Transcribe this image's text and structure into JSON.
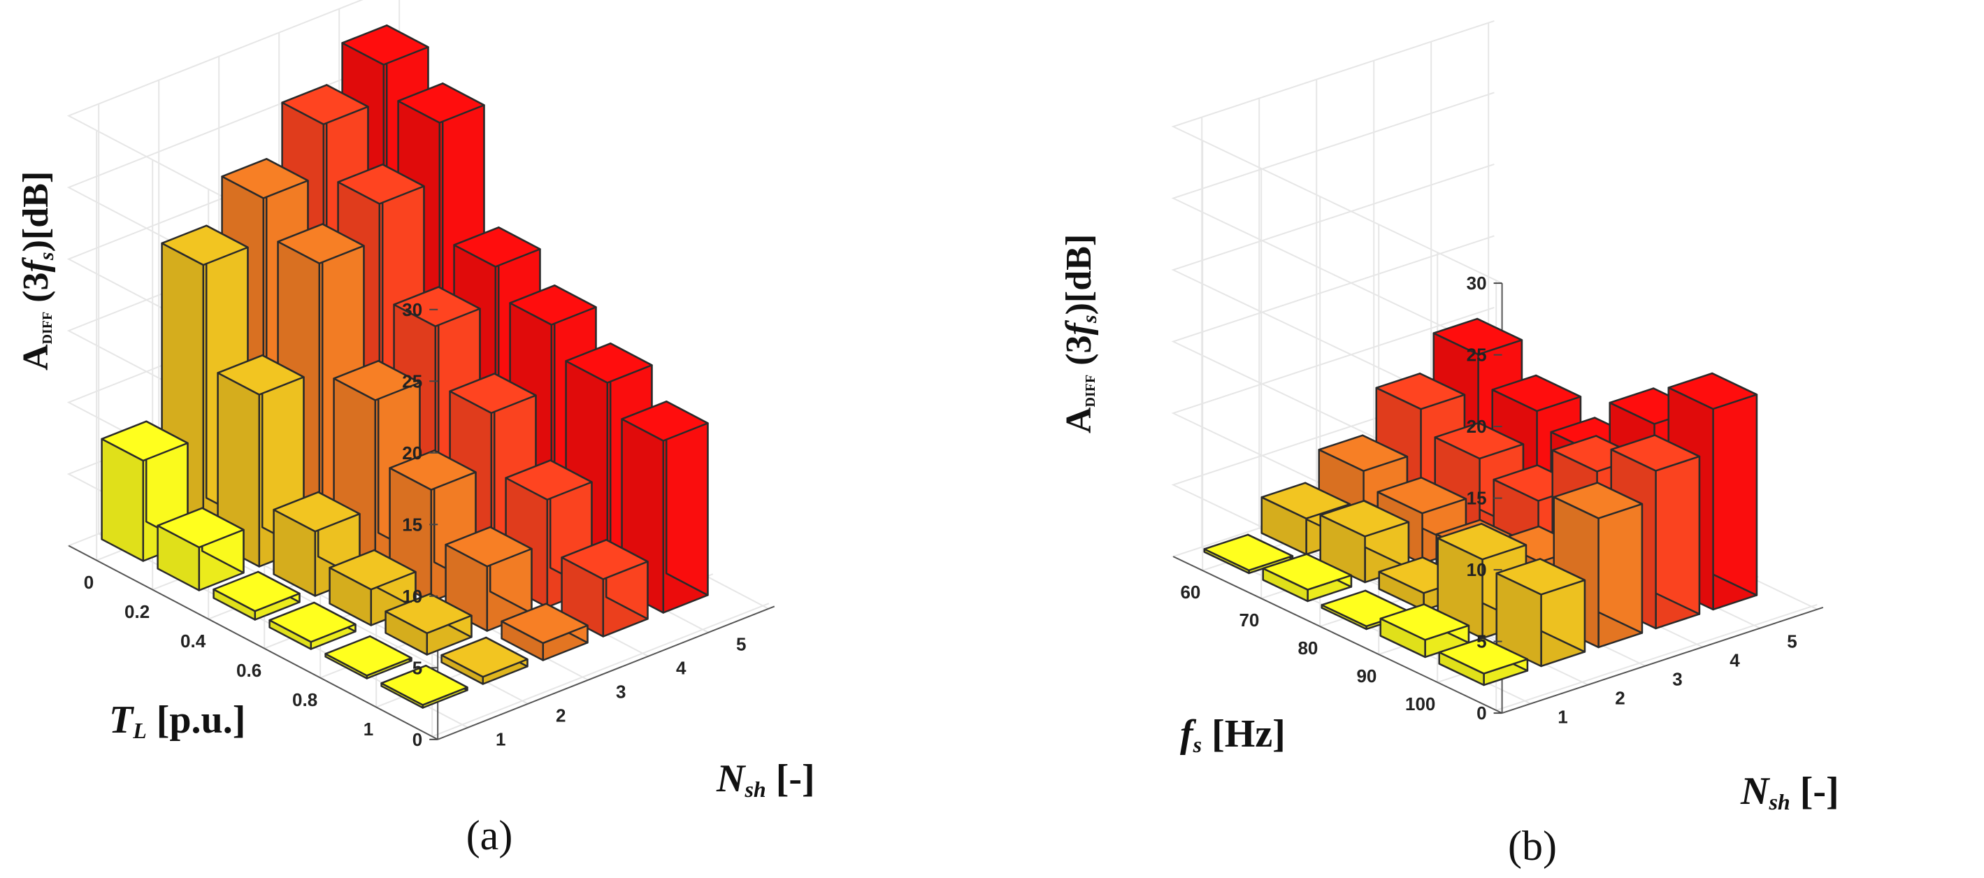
{
  "chart_data": [
    {
      "type": "bar3d",
      "panel_label": "(a)",
      "zlabel_parts": {
        "A": "A",
        "sub": "DIFF",
        "mid": " (3",
        "f": "f",
        "s": "s",
        "end": ")[dB]"
      },
      "depth_label": {
        "main": "T",
        "sub": "L",
        "rest": " [p.u.]"
      },
      "width_label": {
        "main": "N",
        "sub": "sh",
        "rest": " [-]"
      },
      "depth_ticks": [
        "0",
        "0.2",
        "0.4",
        "0.6",
        "0.8",
        "1"
      ],
      "width_ticks": [
        "1",
        "2",
        "3",
        "4",
        "5"
      ],
      "zlim": [
        0,
        30
      ],
      "zticks": [
        "0",
        "5",
        "10",
        "15",
        "20",
        "25",
        "30"
      ],
      "values": [
        [
          7,
          3,
          0.6,
          0.5,
          0.2,
          0.2
        ],
        [
          19,
          12,
          4.5,
          2.5,
          1.5,
          0.5
        ],
        [
          22,
          19.5,
          12,
          7.8,
          4.5,
          1.2
        ],
        [
          25.5,
          22,
          15.5,
          11.5,
          7.5,
          4
        ],
        [
          28,
          26,
          18,
          16,
          14,
          12
        ]
      ]
    },
    {
      "type": "bar3d",
      "panel_label": "(b)",
      "zlabel_parts": {
        "A": "A",
        "sub": "DIFF",
        "mid": " (3",
        "f": "f",
        "s": "s",
        "end": ")[dB]"
      },
      "depth_label": {
        "main": "f",
        "sub": "s",
        "rest": " [Hz]"
      },
      "width_label": {
        "main": "N",
        "sub": "sh",
        "rest": " [-]"
      },
      "depth_ticks": [
        "60",
        "70",
        "80",
        "90",
        "100"
      ],
      "width_ticks": [
        "1",
        "2",
        "3",
        "4",
        "5"
      ],
      "zlim": [
        0,
        30
      ],
      "zticks": [
        "0",
        "5",
        "10",
        "15",
        "20",
        "25",
        "30"
      ],
      "values": [
        [
          0.2,
          0.8,
          0.2,
          1.2,
          0.8
        ],
        [
          2.5,
          3.2,
          1.2,
          5.5,
          5
        ],
        [
          4.5,
          3.5,
          2.5,
          4,
          9
        ],
        [
          7.5,
          6,
          5,
          9,
          11
        ],
        [
          10,
          8,
          7,
          11,
          14
        ]
      ]
    }
  ]
}
